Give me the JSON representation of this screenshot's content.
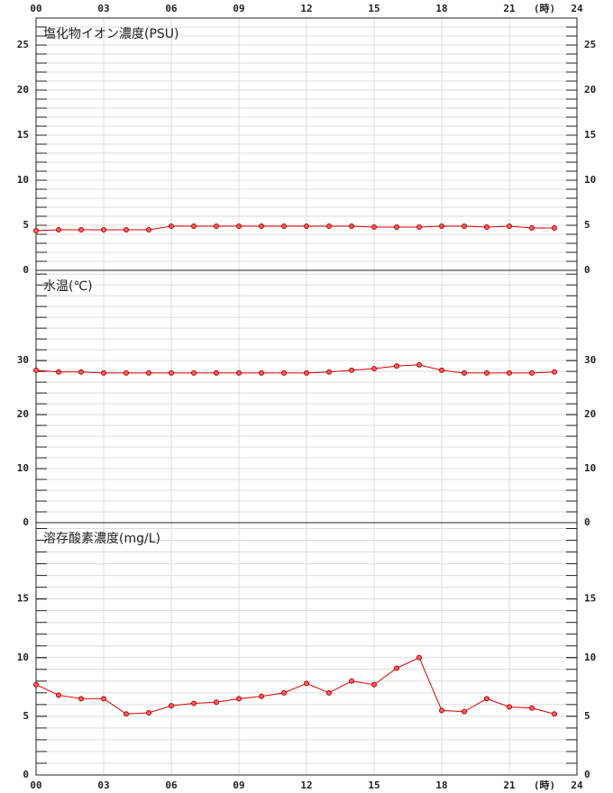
{
  "chart_data": [
    {
      "type": "line",
      "title": "塩化物イオン濃度(PSU)",
      "color": "#e00000",
      "x": [
        0,
        1,
        2,
        3,
        4,
        5,
        6,
        7,
        8,
        9,
        10,
        11,
        12,
        13,
        14,
        15,
        16,
        17,
        18,
        19,
        20,
        21,
        22,
        23
      ],
      "values": [
        4.4,
        4.5,
        4.5,
        4.5,
        4.5,
        4.5,
        4.9,
        4.9,
        4.9,
        4.9,
        4.9,
        4.9,
        4.9,
        4.9,
        4.9,
        4.8,
        4.8,
        4.8,
        4.9,
        4.9,
        4.8,
        4.9,
        4.7,
        4.7
      ],
      "xlim": [
        0,
        24
      ],
      "xticks": [
        {
          "value": 0,
          "label": "00"
        },
        {
          "value": 3,
          "label": "03"
        },
        {
          "value": 6,
          "label": "06"
        },
        {
          "value": 9,
          "label": "09"
        },
        {
          "value": 12,
          "label": "12"
        },
        {
          "value": 15,
          "label": "15"
        },
        {
          "value": 18,
          "label": "18"
        },
        {
          "value": 21,
          "label": "21"
        },
        24
      ],
      "x_unit": "(時)",
      "ylim": [
        0,
        28
      ],
      "yticks": [
        0,
        5,
        10,
        15,
        20,
        25
      ],
      "minor_step": 1,
      "grid": true
    },
    {
      "type": "line",
      "title": "水温(℃)",
      "color": "#e00000",
      "x": [
        0,
        1,
        2,
        3,
        4,
        5,
        6,
        7,
        8,
        9,
        10,
        11,
        12,
        13,
        14,
        15,
        16,
        17,
        18,
        19,
        20,
        21,
        22,
        23
      ],
      "values": [
        28.2,
        27.9,
        27.9,
        27.7,
        27.7,
        27.7,
        27.7,
        27.7,
        27.7,
        27.7,
        27.7,
        27.7,
        27.7,
        27.9,
        28.2,
        28.5,
        29.0,
        29.2,
        28.2,
        27.7,
        27.7,
        27.7,
        27.7,
        27.9
      ],
      "xlim": [
        0,
        24
      ],
      "ylim": [
        0,
        46.7
      ],
      "yticks": [
        0,
        10,
        20,
        30
      ],
      "minor_step": 2,
      "grid": true
    },
    {
      "type": "line",
      "title": "溶存酸素濃度(mg/L)",
      "color": "#e00000",
      "x": [
        0,
        1,
        2,
        3,
        4,
        5,
        6,
        7,
        8,
        9,
        10,
        11,
        12,
        13,
        14,
        15,
        16,
        17,
        18,
        19,
        20,
        21,
        22,
        23
      ],
      "values": [
        7.7,
        6.8,
        6.5,
        6.5,
        5.2,
        5.3,
        5.9,
        6.1,
        6.2,
        6.5,
        6.7,
        7.0,
        7.8,
        7.0,
        8.0,
        7.7,
        9.1,
        10.0,
        5.5,
        5.4,
        6.5,
        5.8,
        5.7,
        5.2
      ],
      "xlim": [
        0,
        24
      ],
      "xticks": [
        {
          "value": 0,
          "label": "00"
        },
        {
          "value": 3,
          "label": "03"
        },
        {
          "value": 6,
          "label": "06"
        },
        {
          "value": 9,
          "label": "09"
        },
        {
          "value": 12,
          "label": "12"
        },
        {
          "value": 15,
          "label": "15"
        },
        {
          "value": 18,
          "label": "18"
        },
        {
          "value": 21,
          "label": "21"
        },
        24
      ],
      "x_unit": "(時)",
      "ylim": [
        0,
        21.5
      ],
      "yticks": [
        0,
        5,
        10,
        15
      ],
      "minor_step": 1,
      "grid": true
    }
  ]
}
